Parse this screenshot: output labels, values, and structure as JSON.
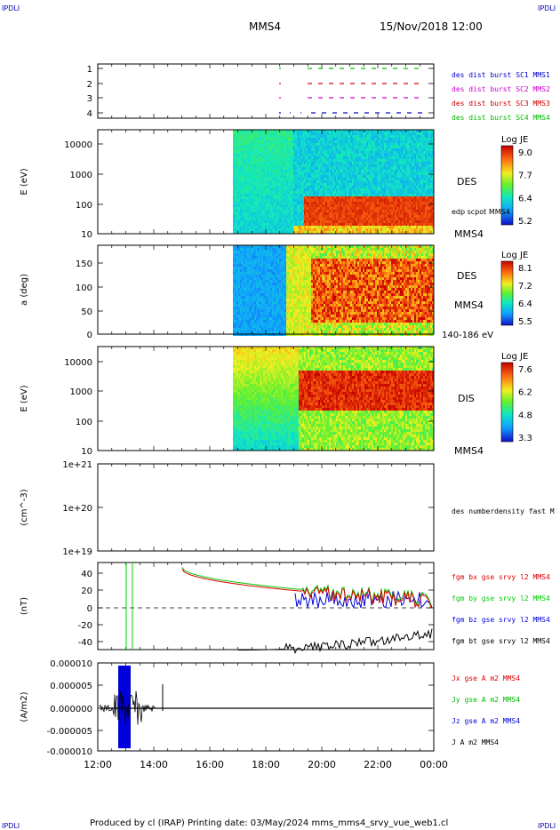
{
  "corner_label": "IPDLI",
  "header": {
    "spacecraft": "MMS4",
    "datetime": "15/Nov/2018 12:00"
  },
  "footer": "Produced by cl (IRAP)   Printing date: 03/May/2024   mms_mms4_srvy_vue_web1.cl",
  "x_axis": {
    "ticks": [
      "12:00",
      "14:00",
      "16:00",
      "18:00",
      "20:00",
      "22:00",
      "00:00"
    ]
  },
  "chart_data": [
    {
      "type": "scatter",
      "name": "burst",
      "ylim": [
        0.5,
        4.5
      ],
      "ticks": [
        "1",
        "2",
        "3",
        "4"
      ],
      "legend": [
        {
          "label": "des dist burst SC1 MMS1",
          "color": "#0000cc"
        },
        {
          "label": "des dist burst SC2 MMS2",
          "color": "#cc00cc"
        },
        {
          "label": "des dist burst SC3 MMS3",
          "color": "#cc0000"
        },
        {
          "label": "des dist burst SC4 MMS4",
          "color": "#00bb00"
        }
      ]
    },
    {
      "type": "heatmap",
      "name": "des-energy",
      "ylabel": "E (eV)",
      "ticks": [
        "10000",
        "1000",
        "100",
        "10"
      ],
      "scale": "log",
      "ylim": [
        10,
        30000
      ],
      "right_labels": [
        "DES",
        "edp scpot MMS4",
        "MMS4"
      ],
      "colorbar": {
        "title": "Log JE",
        "ticks": [
          "9.0",
          "7.7",
          "6.4",
          "5.2"
        ],
        "range": [
          5.2,
          9.0
        ]
      }
    },
    {
      "type": "heatmap",
      "name": "des-pitch",
      "ylabel": "a (deg)",
      "ticks": [
        "150",
        "100",
        "50",
        "0"
      ],
      "ylim": [
        0,
        180
      ],
      "right_labels": [
        "DES",
        "MMS4",
        "140-186 eV"
      ],
      "colorbar": {
        "title": "Log JE",
        "ticks": [
          "8.1",
          "7.2",
          "6.4",
          "5.5"
        ],
        "range": [
          5.5,
          8.1
        ]
      }
    },
    {
      "type": "heatmap",
      "name": "dis-energy",
      "ylabel": "E (eV)",
      "ticks": [
        "10000",
        "1000",
        "100",
        "10"
      ],
      "scale": "log",
      "ylim": [
        10,
        20000
      ],
      "right_labels": [
        "DIS",
        "MMS4"
      ],
      "colorbar": {
        "title": "Log JE",
        "ticks": [
          "7.6",
          "6.2",
          "4.8",
          "3.3"
        ],
        "range": [
          3.3,
          7.6
        ]
      }
    },
    {
      "type": "line",
      "name": "density",
      "ylabel": "(cm^-3)",
      "ticks": [
        "1e+21",
        "1e+20",
        "1e+19"
      ],
      "scale": "log",
      "ylim": [
        1e+19,
        1e+21
      ],
      "legend": [
        {
          "label": "des numberdensity fast M",
          "color": "#000000"
        }
      ]
    },
    {
      "type": "line",
      "name": "fgm",
      "ylabel": "(nT)",
      "ticks": [
        "40",
        "20",
        "0",
        "-20",
        "-40"
      ],
      "ylim": [
        -50,
        50
      ],
      "legend": [
        {
          "label": "fgm bx gse srvy l2 MMS4",
          "color": "#dd0000"
        },
        {
          "label": "fgm by gse srvy l2 MMS4",
          "color": "#00cc00"
        },
        {
          "label": "fgm bz gse srvy l2 MMS4",
          "color": "#0000dd"
        },
        {
          "label": "fgm bt gse srvy l2 MMS4",
          "color": "#000000"
        }
      ]
    },
    {
      "type": "line",
      "name": "current",
      "ylabel": "(A/m2)",
      "ticks": [
        "0.000010",
        "0.000005",
        "0.000000",
        "-0.000005",
        "-0.000010"
      ],
      "ylim": [
        -1e-05,
        1e-05
      ],
      "legend": [
        {
          "label": "Jx gse A m2 MMS4",
          "color": "#dd0000"
        },
        {
          "label": "Jy gse A m2 MMS4",
          "color": "#00bb00"
        },
        {
          "label": "Jz gse A m2 MMS4",
          "color": "#0000dd"
        },
        {
          "label": "J A m2 MMS4",
          "color": "#000000"
        }
      ]
    }
  ]
}
